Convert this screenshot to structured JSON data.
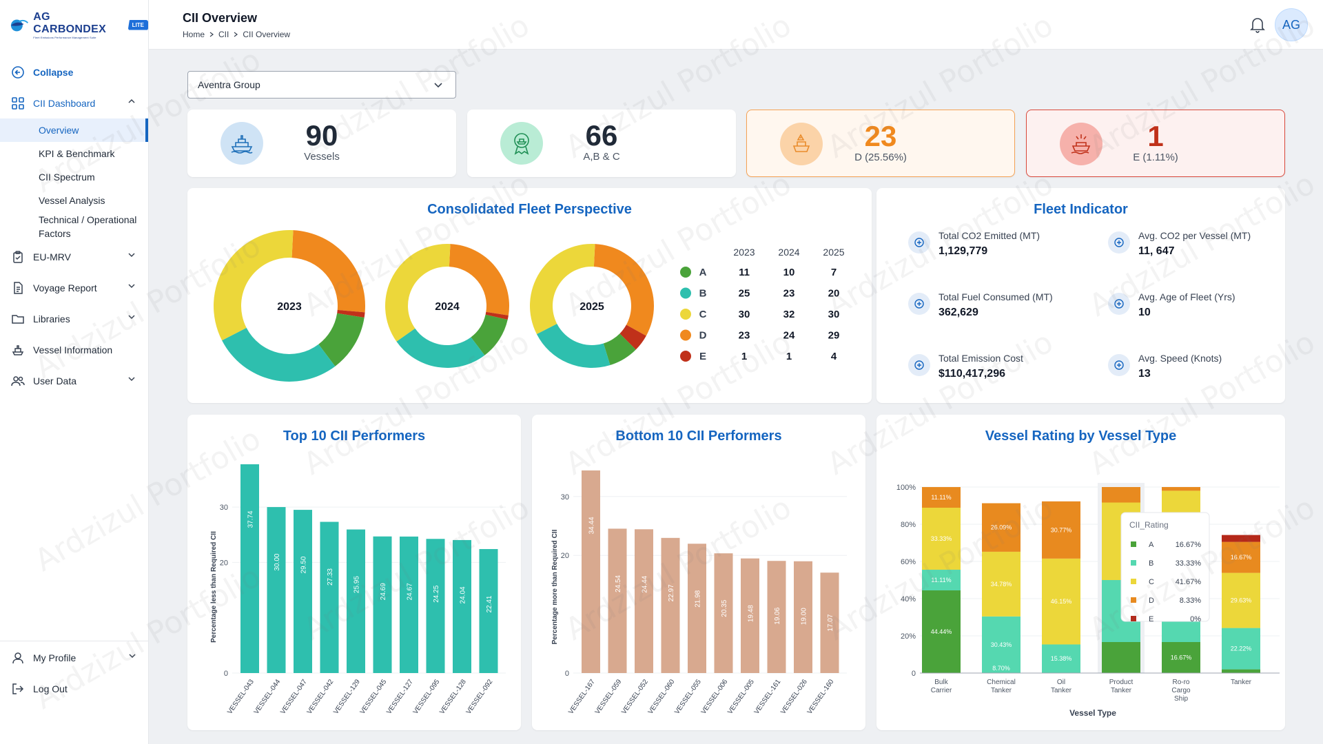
{
  "brand": {
    "name": "AG CARBONDEX",
    "tagline": "Fleet Emissions Performance Management Suite",
    "badge": "LITE"
  },
  "header": {
    "title": "CII Overview",
    "breadcrumb": [
      "Home",
      "CII",
      "CII Overview"
    ],
    "avatar": "AG"
  },
  "sidebar": {
    "collapse": "Collapse",
    "cii_dashboard": "CII Dashboard",
    "sub_items": [
      "Overview",
      "KPI & Benchmark",
      "CII Spectrum",
      "Vessel Analysis",
      "Technical / Operational Factors"
    ],
    "items": [
      "EU-MRV",
      "Voyage Report",
      "Libraries",
      "Vessel Information",
      "User Data"
    ],
    "bottom": [
      "My Profile",
      "Log Out"
    ]
  },
  "filter": {
    "selected": "Aventra Group"
  },
  "stats": [
    {
      "value": "90",
      "label": "Vessels"
    },
    {
      "value": "66",
      "label": "A,B & C"
    },
    {
      "value": "23",
      "label": "D (25.56%)"
    },
    {
      "value": "1",
      "label": "E (1.11%)"
    }
  ],
  "colors": {
    "A": "#4aa33a",
    "B": "#2ebfae",
    "C": "#ecd73a",
    "D": "#f0891e",
    "E": "#c0311a",
    "accent": "#1565c0"
  },
  "fleet_perspective": {
    "title": "Consolidated Fleet Perspective",
    "years": [
      "2023",
      "2024",
      "2025"
    ],
    "ratings": [
      {
        "rating": "A",
        "values": [
          11,
          10,
          7
        ]
      },
      {
        "rating": "B",
        "values": [
          25,
          23,
          20
        ]
      },
      {
        "rating": "C",
        "values": [
          30,
          32,
          30
        ]
      },
      {
        "rating": "D",
        "values": [
          23,
          24,
          29
        ]
      },
      {
        "rating": "E",
        "values": [
          1,
          1,
          4
        ]
      }
    ]
  },
  "fleet_indicator": {
    "title": "Fleet Indicator",
    "items": [
      {
        "label": "Total CO2 Emitted (MT)",
        "value": "1,129,779",
        "icon": "co2-cloud-icon"
      },
      {
        "label": "Avg. CO2 per Vessel (MT)",
        "value": "11, 647",
        "icon": "bar-chart-icon"
      },
      {
        "label": "Total Fuel Consumed (MT)",
        "value": "362,629",
        "icon": "fuel-drop-icon"
      },
      {
        "label": "Avg. Age of Fleet (Yrs)",
        "value": "10",
        "icon": "age-refresh-icon"
      },
      {
        "label": "Total Emission Cost",
        "value": "$110,417,296",
        "icon": "cost-icon"
      },
      {
        "label": "Avg. Speed (Knots)",
        "value": "13",
        "icon": "speedometer-icon"
      }
    ]
  },
  "top10": {
    "title": "Top 10 CII Performers",
    "ylabel": "Percentage less than Required CII",
    "categories": [
      "VESSEL-043",
      "VESSEL-044",
      "VESSEL-047",
      "VESSEL-042",
      "VESSEL-129",
      "VESSEL-045",
      "VESSEL-127",
      "VESSEL-095",
      "VESSEL-128",
      "VESSEL-092"
    ],
    "values": [
      37.74,
      30.0,
      29.5,
      27.33,
      25.95,
      24.69,
      24.67,
      24.25,
      24.04,
      22.41
    ],
    "labels": [
      "37.74",
      "30.00",
      "29.50",
      "27.33",
      "25.95",
      "24.69",
      "24.67",
      "24.25",
      "24.04",
      "22.41"
    ],
    "ticks": [
      "0",
      "20",
      "30"
    ]
  },
  "bottom10": {
    "title": "Bottom 10 CII Performers",
    "ylabel": "Percentage more than Required CII",
    "categories": [
      "VESSEL-167",
      "VESSEL-059",
      "VESSEL-052",
      "VESSEL-060",
      "VESSEL-055",
      "VESSEL-006",
      "VESSEL-005",
      "VESSEL-161",
      "VESSEL-026",
      "VESSEL-160"
    ],
    "values": [
      34.44,
      24.54,
      24.44,
      22.97,
      21.98,
      20.35,
      19.48,
      19.06,
      19.0,
      17.07
    ],
    "labels": [
      "34.44",
      "24.54",
      "24.44",
      "22.97",
      "21.98",
      "20.35",
      "19.48",
      "19.06",
      "19.00",
      "17.07"
    ],
    "ticks": [
      "0",
      "20",
      "30"
    ]
  },
  "chart_data": {
    "type": "bar",
    "title": "Vessel Rating by Vessel Type",
    "xlabel": "Vessel Type",
    "ylabel": "",
    "ylim": [
      0,
      100
    ],
    "yticks": [
      "0",
      "20%",
      "40%",
      "60%",
      "80%",
      "100%"
    ],
    "categories": [
      "Bulk Carrier",
      "Chemical Tanker",
      "Oil Tanker",
      "Product Tanker",
      "Ro-ro Cargo Ship",
      "Tanker"
    ],
    "series": [
      {
        "name": "A",
        "values": [
          44.44,
          0,
          0,
          16.67,
          16.67,
          2.0
        ]
      },
      {
        "name": "B",
        "values": [
          11.11,
          30.43,
          15.38,
          33.33,
          43.33,
          22.22
        ]
      },
      {
        "name": "C",
        "values": [
          33.33,
          34.78,
          46.15,
          41.67,
          38.0,
          29.63
        ]
      },
      {
        "name": "D",
        "values": [
          11.11,
          26.09,
          30.77,
          8.33,
          2.0,
          16.67
        ]
      },
      {
        "name": "E",
        "values": [
          0,
          0,
          0,
          0,
          0,
          3.7
        ]
      }
    ],
    "bar_labels": [
      [
        "44.44%",
        "",
        "",
        "",
        "16.67%",
        ""
      ],
      [
        "11.11%",
        "30.43%",
        "15.38%",
        "",
        "",
        "22.22%"
      ],
      [
        "33.33%",
        "34.78%",
        "46.15%",
        "",
        "",
        "29.63%"
      ],
      [
        "11.11%",
        "26.09%",
        "30.77%",
        "",
        "",
        "16.67%"
      ],
      [
        "",
        "",
        "",
        "",
        "",
        ""
      ]
    ],
    "extra_label": {
      "category": "Chemical Tanker",
      "text": "8.70%"
    },
    "tooltip": {
      "title": "CII_Rating",
      "rows": [
        {
          "rating": "A",
          "value": "16.67%"
        },
        {
          "rating": "B",
          "value": "33.33%"
        },
        {
          "rating": "C",
          "value": "41.67%"
        },
        {
          "rating": "D",
          "value": "8.33%"
        },
        {
          "rating": "E",
          "value": "0%"
        }
      ]
    }
  },
  "watermark": "Ardzizul Portfolio"
}
